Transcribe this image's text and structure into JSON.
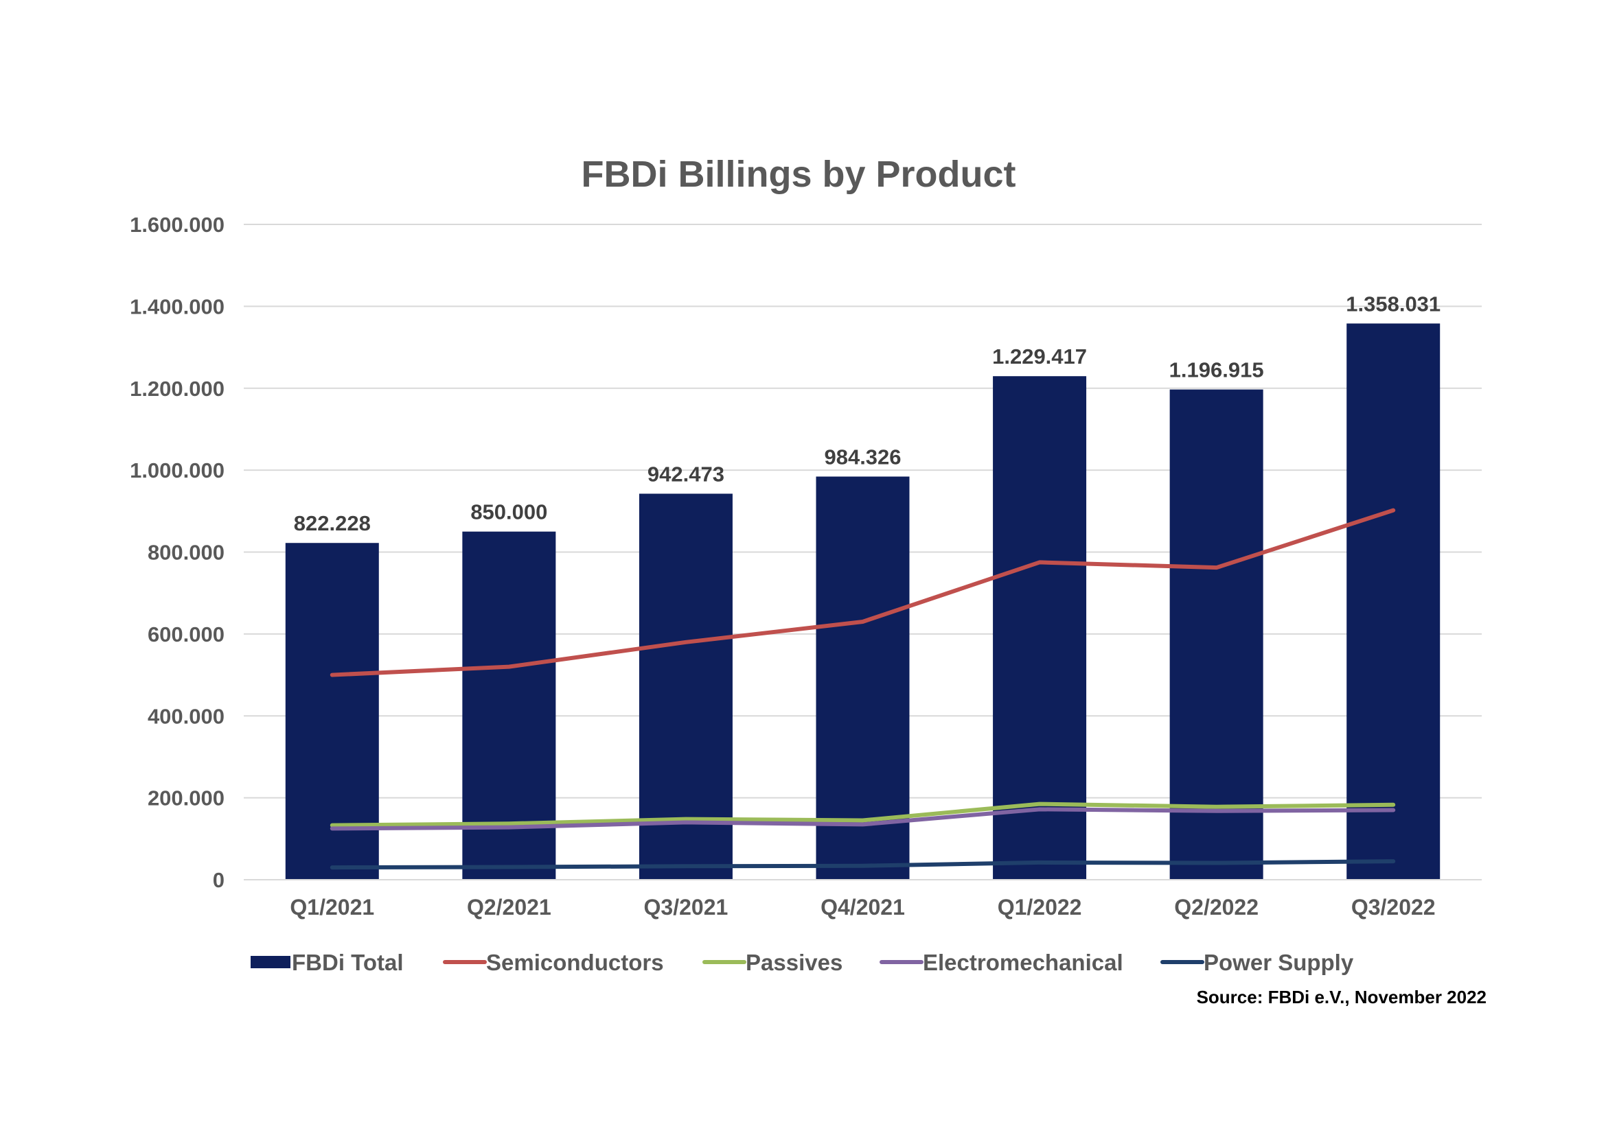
{
  "chart_data": {
    "type": "bar",
    "title": "FBDi Billings by Product",
    "xlabel": "",
    "ylabel": "",
    "ylim": [
      0,
      1600000
    ],
    "ytick_values": [
      0,
      200000,
      400000,
      600000,
      800000,
      1000000,
      1200000,
      1400000,
      1600000
    ],
    "ytick_labels": [
      "0",
      "200.000",
      "400.000",
      "600.000",
      "800.000",
      "1.000.000",
      "1.200.000",
      "1.400.000",
      "1.600.000"
    ],
    "grid": true,
    "legend_position": "bottom",
    "categories": [
      "Q1/2021",
      "Q2/2021",
      "Q3/2021",
      "Q4/2021",
      "Q1/2022",
      "Q2/2022",
      "Q3/2022"
    ],
    "bar_series": {
      "name": "FBDi Total",
      "color": "#0E1F5B",
      "values": [
        822228,
        850000,
        942473,
        984326,
        1229417,
        1196915,
        1358031
      ],
      "labels": [
        "822.228",
        "850.000",
        "942.473",
        "984.326",
        "1.229.417",
        "1.196.915",
        "1.358.031"
      ]
    },
    "line_series": [
      {
        "name": "Semiconductors",
        "color": "#C0504D",
        "values": [
          500000,
          520000,
          580000,
          630000,
          775000,
          762000,
          902000
        ]
      },
      {
        "name": "Passives",
        "color": "#9BBB59",
        "values": [
          133000,
          137000,
          148000,
          145000,
          185000,
          178000,
          183000
        ]
      },
      {
        "name": "Electromechanical",
        "color": "#8064A2",
        "values": [
          125000,
          128000,
          140000,
          135000,
          172000,
          168000,
          170000
        ]
      },
      {
        "name": "Power Supply",
        "color": "#1F3F6B",
        "values": [
          30000,
          31000,
          33000,
          34000,
          42000,
          41000,
          45000
        ]
      }
    ],
    "source": "Source: FBDi e.V., November 2022"
  }
}
